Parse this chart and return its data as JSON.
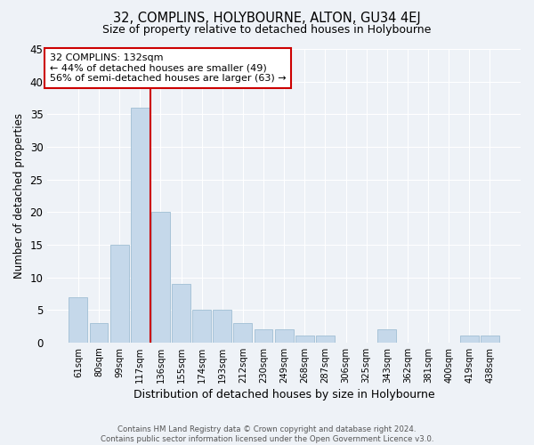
{
  "title": "32, COMPLINS, HOLYBOURNE, ALTON, GU34 4EJ",
  "subtitle": "Size of property relative to detached houses in Holybourne",
  "xlabel": "Distribution of detached houses by size in Holybourne",
  "ylabel": "Number of detached properties",
  "bar_labels": [
    "61sqm",
    "80sqm",
    "99sqm",
    "117sqm",
    "136sqm",
    "155sqm",
    "174sqm",
    "193sqm",
    "212sqm",
    "230sqm",
    "249sqm",
    "268sqm",
    "287sqm",
    "306sqm",
    "325sqm",
    "343sqm",
    "362sqm",
    "381sqm",
    "400sqm",
    "419sqm",
    "438sqm"
  ],
  "bar_values": [
    7,
    3,
    15,
    36,
    20,
    9,
    5,
    5,
    3,
    2,
    2,
    1,
    1,
    0,
    0,
    2,
    0,
    0,
    0,
    1,
    1
  ],
  "bar_color": "#c5d8ea",
  "bar_edgecolor": "#a8c4d8",
  "vline_x_index": 3.5,
  "vline_color": "#cc0000",
  "ylim": [
    0,
    45
  ],
  "yticks": [
    0,
    5,
    10,
    15,
    20,
    25,
    30,
    35,
    40,
    45
  ],
  "annotation_title": "32 COMPLINS: 132sqm",
  "annotation_line1": "← 44% of detached houses are smaller (49)",
  "annotation_line2": "56% of semi-detached houses are larger (63) →",
  "annotation_box_facecolor": "#ffffff",
  "annotation_box_edgecolor": "#cc0000",
  "footer1": "Contains HM Land Registry data © Crown copyright and database right 2024.",
  "footer2": "Contains public sector information licensed under the Open Government Licence v3.0.",
  "bg_color": "#eef2f7",
  "plot_bg_color": "#eef2f7",
  "grid_color": "#ffffff"
}
